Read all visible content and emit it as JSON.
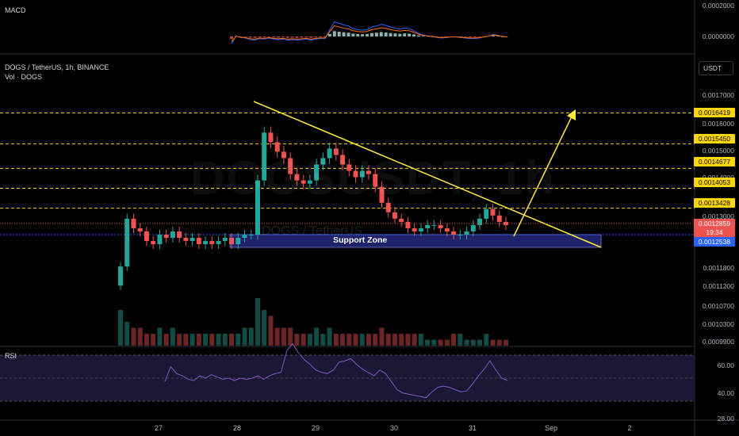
{
  "symbol_title": "DOGS / TetherUS, 1h, BINANCE",
  "volume_label": "Vol · DOGS",
  "macd_label": "MACD",
  "rsi_label": "RSI",
  "currency_button": "USDT",
  "watermark_symbol": "DOGSUSDT, 1h",
  "watermark_sub": "DOGS / TetherUS",
  "support_zone_label": "Support Zone",
  "colors": {
    "up": "#26a69a",
    "down": "#ef5350",
    "level_line": "#ffd600",
    "trend_line": "#ffeb3b",
    "support_fill": "#2a2e8c",
    "badge_yellow": "#ffd600",
    "badge_red": "#ef5350",
    "badge_blue": "#2962ff",
    "macd_line": "#2962ff",
    "signal_line": "#ff6d00",
    "rsi_line": "#7e57c2"
  },
  "chart_data": {
    "type": "candlestick",
    "title": "DOGS / TetherUS, 1h, BINANCE",
    "x_ticks": [
      "27",
      "28",
      "29",
      "30",
      "31",
      "Sep",
      "2"
    ],
    "y_axis_ticks": [
      "0.0017000",
      "0.0016000",
      "0.0015000",
      "0.0014000",
      "0.0013000",
      "0.0011800",
      "0.0011200",
      "0.0010700",
      "0.0010300",
      "0.0009900"
    ],
    "horizontal_levels": [
      "0.0016419",
      "0.0015450",
      "0.0014677",
      "0.0014053",
      "0.0013428"
    ],
    "current_price": "0.0012859",
    "countdown": "19:34",
    "support_price": "0.0012538",
    "macd_axis_ticks": [
      "0.0002000",
      "0.0000000"
    ],
    "rsi_axis_ticks": [
      "60.00",
      "40.00",
      "28.00"
    ],
    "close_series": [
      0.00116,
      0.00131,
      0.00128,
      0.00127,
      0.00124,
      0.00123,
      0.00126,
      0.00125,
      0.00127,
      0.00125,
      0.00124,
      0.00125,
      0.00123,
      0.00124,
      0.00123,
      0.00124,
      0.00125,
      0.00123,
      0.00125,
      0.00126,
      0.00126,
      0.00143,
      0.00158,
      0.00155,
      0.00152,
      0.0015,
      0.00145,
      0.00143,
      0.00142,
      0.00143,
      0.00148,
      0.0015,
      0.00153,
      0.00151,
      0.00148,
      0.00146,
      0.00144,
      0.00146,
      0.00145,
      0.00141,
      0.00136,
      0.00133,
      0.00131,
      0.0013,
      0.00128,
      0.00127,
      0.00128,
      0.00129,
      0.00129,
      0.00128,
      0.00127,
      0.00126,
      0.00126,
      0.00127,
      0.00129,
      0.00131,
      0.00134,
      0.00132,
      0.0013,
      0.00129
    ],
    "volume_series": [
      6,
      4,
      3,
      3,
      2,
      2,
      3,
      2,
      3,
      2,
      2,
      2,
      2,
      2,
      2,
      2,
      2,
      2,
      2,
      3,
      3,
      8,
      6,
      5,
      3,
      3,
      3,
      2,
      2,
      2,
      3,
      2,
      3,
      2,
      2,
      2,
      2,
      2,
      2,
      2,
      3,
      2,
      2,
      2,
      2,
      2,
      2,
      1,
      1,
      1,
      1,
      2,
      2,
      1,
      1,
      1,
      2,
      1,
      1,
      1
    ],
    "rsi_series": [
      45,
      58,
      52,
      50,
      47,
      46,
      50,
      48,
      51,
      49,
      47,
      48,
      46,
      48,
      47,
      48,
      50,
      47,
      50,
      52,
      53,
      72,
      78,
      70,
      64,
      60,
      55,
      53,
      52,
      55,
      62,
      63,
      65,
      60,
      56,
      53,
      50,
      55,
      52,
      45,
      38,
      35,
      34,
      33,
      32,
      31,
      36,
      40,
      41,
      40,
      38,
      36,
      37,
      43,
      50,
      56,
      63,
      55,
      48,
      46
    ]
  }
}
